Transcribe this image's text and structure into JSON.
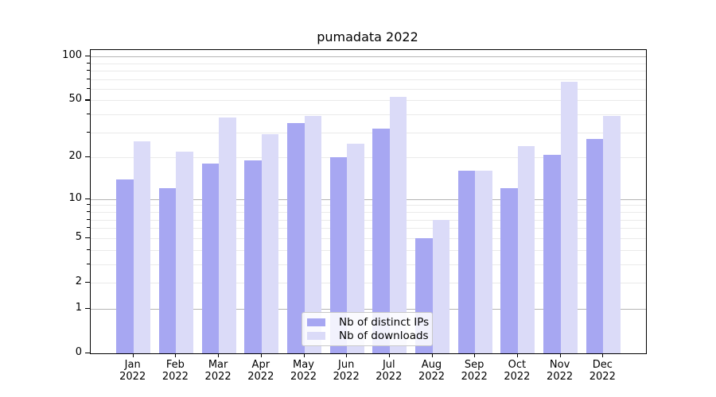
{
  "chart_data": {
    "type": "bar",
    "title": "pumadata 2022",
    "categories": [
      "Jan",
      "Feb",
      "Mar",
      "Apr",
      "May",
      "Jun",
      "Jul",
      "Aug",
      "Sep",
      "Oct",
      "Nov",
      "Dec"
    ],
    "x_year_label": "2022",
    "series": [
      {
        "name": "Nb of distinct IPs",
        "color": "#a7a7f2",
        "values": [
          14,
          12,
          18,
          19,
          35,
          20,
          32,
          5,
          16,
          12,
          21,
          27
        ]
      },
      {
        "name": "Nb of downloads",
        "color": "#dbdbf8",
        "values": [
          26,
          22,
          38,
          29,
          39,
          25,
          53,
          7,
          16,
          24,
          67,
          39
        ]
      }
    ],
    "xlabel": "",
    "ylabel": "",
    "yscale": "log1p",
    "ylim": [
      0,
      110.5
    ],
    "ytick_labels": [
      0,
      1,
      2,
      5,
      10,
      20,
      50,
      100
    ],
    "major_gridlines": [
      1,
      10,
      100
    ],
    "minor_gridlines": [
      2,
      3,
      4,
      5,
      6,
      7,
      8,
      9,
      20,
      30,
      40,
      50,
      60,
      70,
      80,
      90
    ],
    "grid": true,
    "legend_position": "lower center",
    "colors": {
      "major_grid": "#b4b4b4",
      "minor_grid": "#eaeaea",
      "spine": "#000000",
      "text": "#000000",
      "background": "#ffffff"
    }
  }
}
